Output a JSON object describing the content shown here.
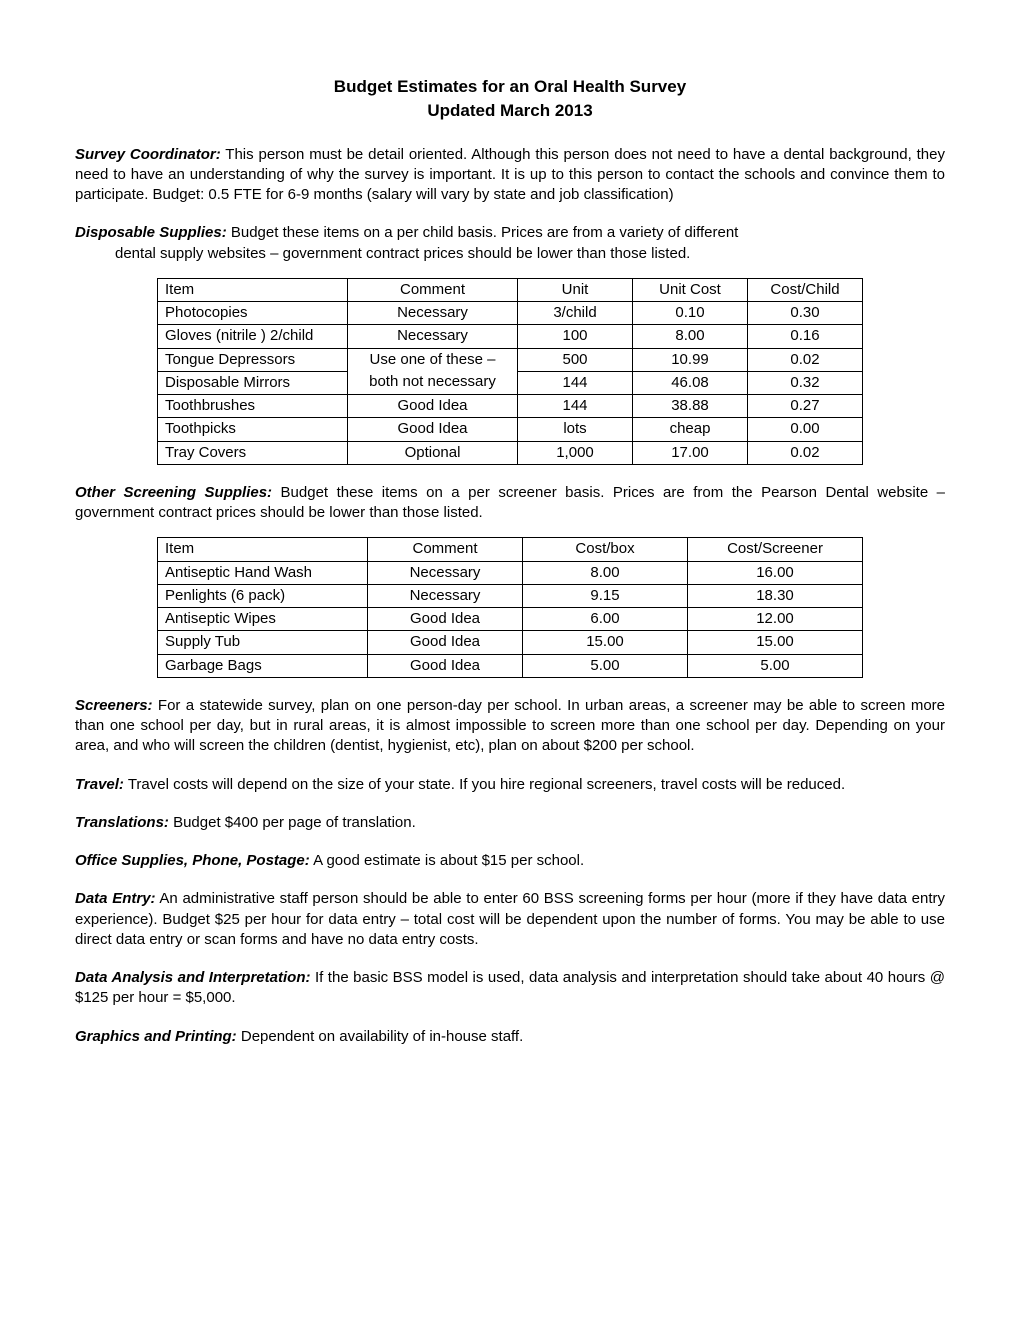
{
  "title": {
    "line1": "Budget Estimates for an Oral Health Survey",
    "line2": "Updated March 2013"
  },
  "sections": {
    "coordinator": {
      "label": "Survey Coordinator:",
      "text": " This person must be detail oriented.  Although this person does not need to have a dental background, they need to have an understanding of why the survey is important.  It is up to this person to contact the schools and convince them to participate. Budget: 0.5 FTE for 6-9 months (salary will vary by state and job classification)"
    },
    "disposable": {
      "label": "Disposable Supplies:",
      "text_line1": " Budget these items on a per child basis.  Prices are from a variety of different",
      "text_line2": "dental supply websites – government contract prices should be lower than those listed."
    },
    "other": {
      "label": "Other Screening Supplies:",
      "text": " Budget these items on a per screener basis.  Prices are from the Pearson Dental website – government contract prices should be lower than those listed."
    },
    "screeners": {
      "label": "Screeners:",
      "text": "  For a statewide survey, plan on one person-day per school.  In urban areas, a screener may be able to screen more than one school per day, but in rural areas, it is almost impossible to screen more than one school per day.  Depending on your area, and who will screen the children (dentist, hygienist, etc), plan on about $200 per school."
    },
    "travel": {
      "label": "Travel:",
      "text": "  Travel costs will depend on the size of your state.  If you hire regional screeners, travel costs will be reduced."
    },
    "translations": {
      "label": "Translations:",
      "text": "  Budget $400 per page of translation."
    },
    "office": {
      "label": "Office Supplies, Phone, Postage:",
      "text": " A good estimate is about $15 per school."
    },
    "dataentry": {
      "label": "Data Entry:",
      "text": " An administrative staff person should be able to enter 60 BSS screening forms per hour (more if they have data entry experience).  Budget $25 per hour for data entry – total cost will be dependent upon the number of forms.  You may be able to use direct data entry or scan forms and have no data entry costs."
    },
    "analysis": {
      "label": "Data Analysis and Interpretation:",
      "text": " If the basic BSS model is used, data analysis and interpretation should take about 40 hours @ $125 per hour = $5,000."
    },
    "graphics": {
      "label": "Graphics and Printing:",
      "text": " Dependent on availability of in-house staff."
    }
  },
  "table1": {
    "headers": [
      "Item",
      "Comment",
      "Unit",
      "Unit Cost",
      "Cost/Child"
    ],
    "rows": [
      {
        "c": [
          "Photocopies",
          "Necessary",
          "3/child",
          "0.10",
          "0.30"
        ],
        "merge": "none"
      },
      {
        "c": [
          "Gloves (nitrile ) 2/child",
          "Necessary",
          "100",
          "8.00",
          "0.16"
        ],
        "merge": "none"
      },
      {
        "c": [
          "Tongue Depressors",
          "Use one of these –",
          "500",
          "10.99",
          "0.02"
        ],
        "merge": "top"
      },
      {
        "c": [
          "Disposable Mirrors",
          "both not necessary",
          "144",
          "46.08",
          "0.32"
        ],
        "merge": "bottom"
      },
      {
        "c": [
          "Toothbrushes",
          "Good Idea",
          "144",
          "38.88",
          "0.27"
        ],
        "merge": "none"
      },
      {
        "c": [
          "Toothpicks",
          "Good Idea",
          "lots",
          "cheap",
          "0.00"
        ],
        "merge": "none"
      },
      {
        "c": [
          "Tray Covers",
          "Optional",
          "1,000",
          "17.00",
          "0.02"
        ],
        "merge": "none"
      }
    ]
  },
  "table2": {
    "headers": [
      "Item",
      "Comment",
      "Cost/box",
      "Cost/Screener"
    ],
    "rows": [
      {
        "c": [
          "Antiseptic Hand Wash",
          "Necessary",
          "8.00",
          "16.00"
        ]
      },
      {
        "c": [
          "Penlights (6 pack)",
          "Necessary",
          "9.15",
          "18.30"
        ]
      },
      {
        "c": [
          "Antiseptic Wipes",
          "Good Idea",
          "6.00",
          "12.00"
        ]
      },
      {
        "c": [
          "Supply Tub",
          "Good Idea",
          "15.00",
          "15.00"
        ]
      },
      {
        "c": [
          "Garbage Bags",
          "Good Idea",
          "5.00",
          "5.00"
        ]
      }
    ]
  }
}
